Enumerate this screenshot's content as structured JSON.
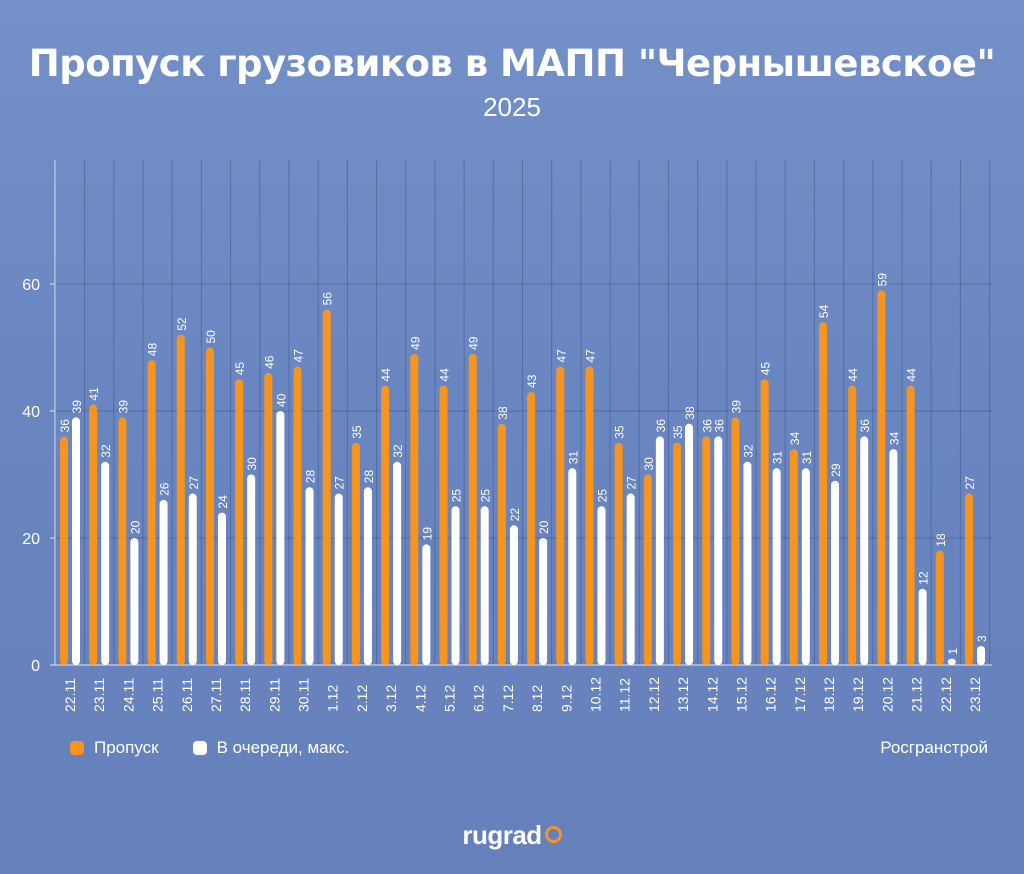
{
  "chart_data": {
    "type": "bar",
    "title": "Пропуск грузовиков в МАПП \"Чернышевское\"",
    "subtitle": "2025",
    "categories": [
      "22.11",
      "23.11",
      "24.11",
      "25.11",
      "26.11",
      "27.11",
      "28.11",
      "29.11",
      "30.11",
      "1.12",
      "2.12",
      "3.12",
      "4.12",
      "5.12",
      "6.12",
      "7.12",
      "8.12",
      "9.12",
      "10.12",
      "11.12",
      "12.12",
      "13.12",
      "14.12",
      "15.12",
      "16.12",
      "17.12",
      "18.12",
      "19.12",
      "20.12",
      "21.12",
      "22.12",
      "23.12"
    ],
    "series": [
      {
        "name": "Пропуск",
        "color": "#f7941d",
        "values": [
          36,
          41,
          39,
          48,
          52,
          50,
          45,
          46,
          47,
          56,
          35,
          44,
          49,
          44,
          49,
          38,
          43,
          47,
          47,
          35,
          30,
          35,
          36,
          39,
          45,
          34,
          54,
          44,
          59,
          44,
          18,
          27
        ]
      },
      {
        "name": "В очереди, макс.",
        "color": "#ffffff",
        "values": [
          39,
          32,
          20,
          26,
          27,
          24,
          30,
          40,
          28,
          27,
          28,
          32,
          19,
          25,
          25,
          22,
          20,
          31,
          25,
          27,
          36,
          38,
          36,
          32,
          31,
          31,
          29,
          36,
          34,
          12,
          1,
          3
        ]
      }
    ],
    "yticks": [
      0,
      20,
      40,
      60
    ],
    "ylim": [
      0,
      60
    ],
    "grid": true,
    "legend": "bottom-left",
    "source": "Росгранстрой",
    "logo": "rugrad"
  }
}
